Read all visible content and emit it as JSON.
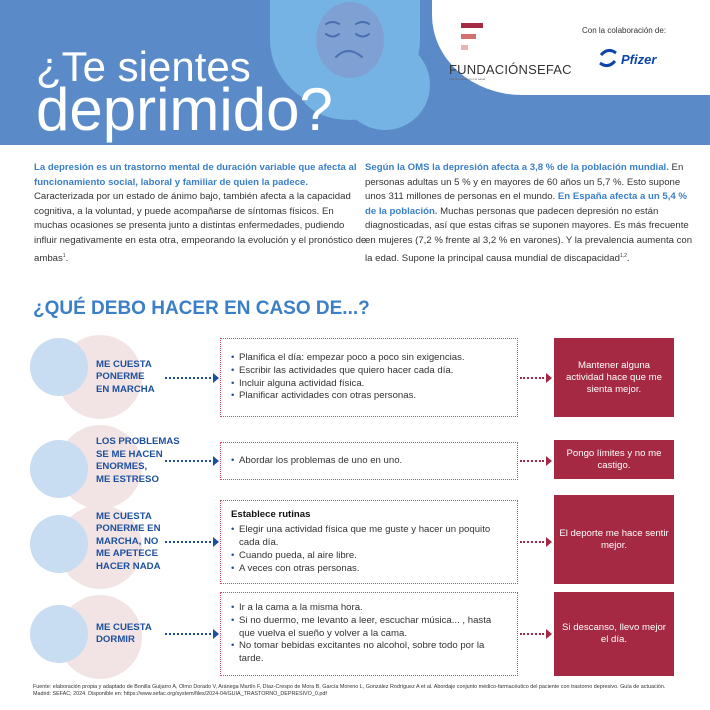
{
  "header": {
    "title_line1": "¿Te sientes",
    "title_line2": "deprimido?",
    "bg_color": "#5a8bc8",
    "icon": "sad-face-icon"
  },
  "logos": {
    "sefac_name": "FUNDACIÓNSEFAC",
    "sefac_tagline": "Farmacéuticos por tu salud",
    "collab_label": "Con la colaboración de:",
    "pfizer_name": "Pfizer"
  },
  "intro": {
    "left": {
      "bold": "La depresión es un trastorno mental de duración variable que afecta al funcionamiento social, laboral y familiar de quien la padece.",
      "text": " Caracterizada por un estado de ánimo bajo, también afecta a la capacidad cognitiva, a la voluntad, y puede acompañarse de síntomas físicos. En muchas ocasiones se presenta junto a distintas enfermedades, pudiendo influir negativamente en esta otra, empeorando la evolución y el pronóstico de ambas",
      "sup": "1",
      "end": "."
    },
    "right": {
      "bold1": "Según la OMS la depresión afecta a 3,8 %  de la población mundial.",
      "text1": " En personas adultas un 5 % y en mayores de 60 años un 5,7 %. Esto supone unos 311 millones de personas en el mundo. ",
      "bold2": "En España afecta a un 5,4 % de la población.",
      "text2": " Muchas personas que padecen depresión no están diagnosticadas, así que estas cifras se suponen mayores. Es más frecuente en mujeres (7,2 % frente al 3,2 % en varones). Y la prevalencia aumenta con la edad. Supone la principal causa mundial de discapacidad",
      "sup": "1,2",
      "end": "."
    }
  },
  "section_title": "¿QUÉ DEBO HACER EN CASO DE...?",
  "rows": [
    {
      "label": "ME CUESTA\nPONERME\nEN MARCHA",
      "heading": "",
      "tips": [
        "Planifica el día: empezar poco a poco sin exigencias.",
        "Escribir las actividades que quiero hacer cada día.",
        "Incluir alguna actividad física.",
        "Planificar actividades con otras personas."
      ],
      "result": "Mantener alguna actividad hace que me sienta mejor."
    },
    {
      "label": "LOS PROBLEMAS\nSE ME HACEN\nENORMES,\nME ESTRESO",
      "heading": "",
      "tips": [
        "Abordar los problemas de uno en uno."
      ],
      "result": "Pongo límites y no me castigo."
    },
    {
      "label": "ME CUESTA\nPONERME EN\nMARCHA, NO\nME APETECE\nHACER NADA",
      "heading": "Establece rutinas",
      "tips": [
        "Elegir una actividad física que me guste y hacer un poquito cada día.",
        "Cuando pueda, al aire libre.",
        "A veces con otras personas."
      ],
      "result": "El deporte me hace sentir mejor."
    },
    {
      "label": "ME CUESTA\nDORMIR",
      "heading": "",
      "tips": [
        "Ir a la cama a la misma hora.",
        "Si no duermo, me levanto a leer, escuchar música... , hasta que vuelva el sueño y volver a la cama.",
        "No tomar bebidas excitantes no alcohol, sobre todo por la tarde."
      ],
      "result": "Si descanso, llevo mejor el día."
    }
  ],
  "footer": "Fuente: elaboración propia y adaptado de Bonilla Guijarro A, Olmo Dorado V, Aránega Martín F, Díaz-Crespo de Mora B, García Moreno L, González Rodríguez A et al. Abordaje conjunto médico-farmacéutico del paciente con trastorno depresivo. Guía de actuación. Madrid: SEFAC; 2024. Disponible en: https://www.sefac.org/system/files/2024-04/GUIA_TRASTORNO_DEPRESIVO_0.pdf",
  "colors": {
    "accent_blue": "#3a7fc8",
    "dark_blue": "#1c4f9f",
    "result_red": "#a52942",
    "dotted_border": "#d6475f"
  }
}
